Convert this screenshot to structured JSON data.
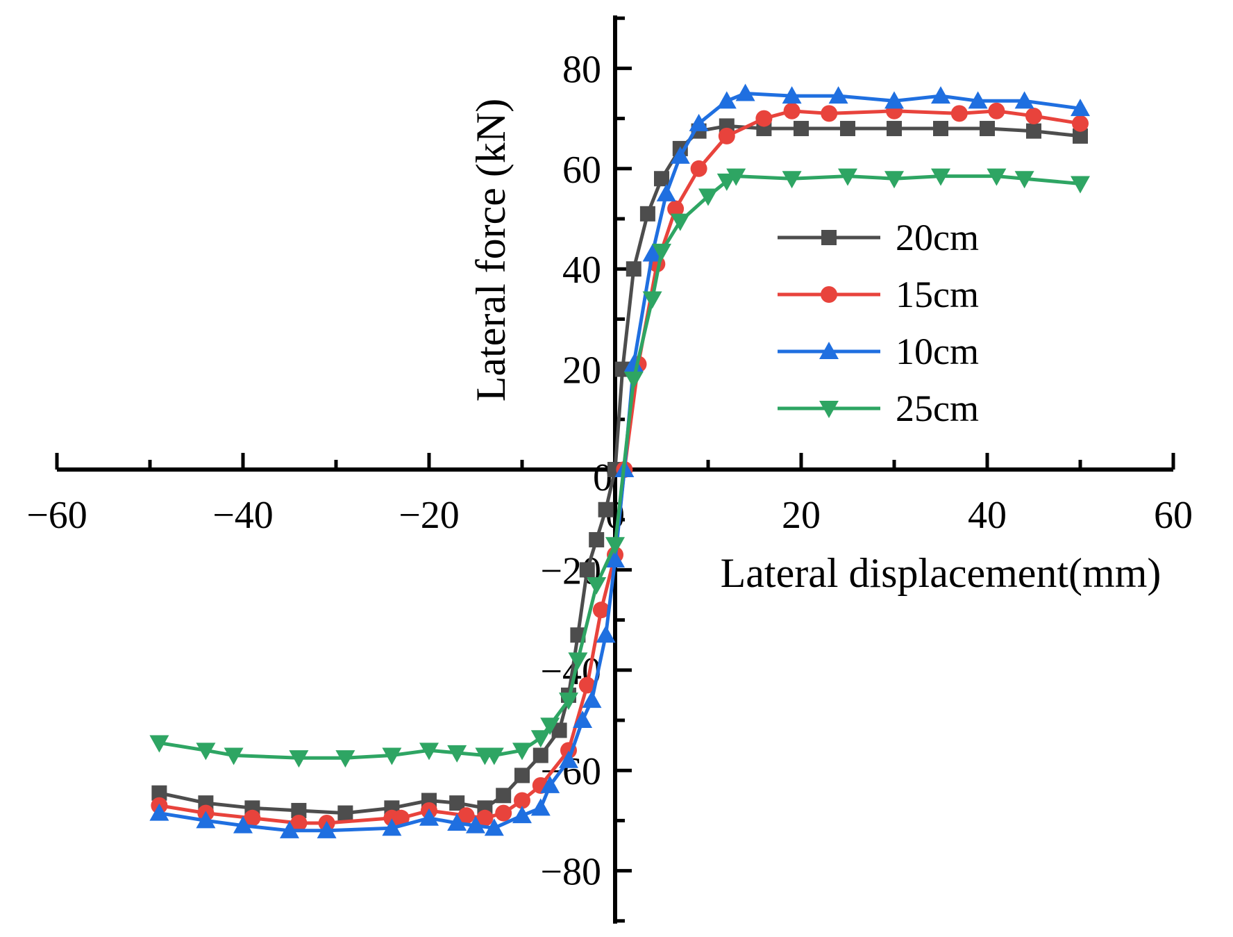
{
  "chart_data": {
    "type": "line",
    "title": "",
    "xlabel": "Lateral displacement(mm)",
    "ylabel": "Lateral force (kN)",
    "xlim": [
      -60,
      60
    ],
    "ylim": [
      -90,
      90
    ],
    "xticks": [
      -60,
      -40,
      -20,
      0,
      20,
      40,
      60
    ],
    "xtick_labels": [
      "−60",
      "−40",
      "−20",
      "0",
      "20",
      "40",
      "60"
    ],
    "yticks": [
      -80,
      -60,
      -40,
      -20,
      20,
      40,
      60,
      80
    ],
    "ytick_labels": [
      "−80",
      "−60",
      "−40",
      "−20",
      "20",
      "40",
      "60",
      "80"
    ],
    "legend_position": "right",
    "series": [
      {
        "name": "20cm",
        "color": "#4d4d4d",
        "marker": "square",
        "x": [
          -49,
          -44,
          -39,
          -34,
          -29,
          -24,
          -20,
          -17,
          -14,
          -12,
          -10,
          -8,
          -6,
          -5,
          -4,
          -3,
          -2,
          -1,
          0,
          0.8,
          2,
          3.5,
          5,
          7,
          9,
          12,
          16,
          20,
          25,
          30,
          35,
          40,
          45,
          50
        ],
        "y": [
          -64.5,
          -66.5,
          -67.5,
          -68,
          -68.5,
          -67.5,
          -66,
          -66.5,
          -67.5,
          -65,
          -61,
          -57,
          -52,
          -45,
          -33,
          -20,
          -14,
          -8,
          0,
          20,
          40,
          51,
          58,
          64,
          67.5,
          68.5,
          68,
          68,
          68,
          68,
          68,
          68,
          67.5,
          66.5
        ]
      },
      {
        "name": "15cm",
        "color": "#e8433c",
        "marker": "circle",
        "x": [
          -49,
          -44,
          -39,
          -34,
          -31,
          -24,
          -23,
          -20,
          -16,
          -14,
          -12,
          -10,
          -8,
          -5,
          -3,
          -1.5,
          0,
          1,
          2.5,
          4.5,
          6.5,
          9,
          12,
          16,
          19,
          23,
          30,
          37,
          41,
          45,
          50
        ],
        "y": [
          -67,
          -68.5,
          -69.5,
          -70.5,
          -70.5,
          -69.5,
          -69.5,
          -68,
          -69,
          -69.5,
          -68.5,
          -66,
          -63,
          -56,
          -43,
          -28,
          -17,
          0,
          21,
          41,
          52,
          60,
          66.5,
          70,
          71.5,
          71,
          71.5,
          71,
          71.5,
          70.5,
          69
        ]
      },
      {
        "name": "10cm",
        "color": "#1f6fe0",
        "marker": "triangle-up",
        "x": [
          -49,
          -44,
          -40,
          -35,
          -31,
          -24,
          -20,
          -17,
          -15,
          -13,
          -10,
          -8,
          -7,
          -5,
          -3.5,
          -2.5,
          -1,
          0,
          1,
          2,
          4,
          5.5,
          7,
          9,
          12,
          14,
          19,
          24,
          30,
          35,
          39,
          44,
          50
        ],
        "y": [
          -68.5,
          -70,
          -71,
          -72,
          -72,
          -71.5,
          -69.5,
          -70.5,
          -71,
          -71.5,
          -69,
          -67.5,
          -63,
          -58,
          -50,
          -46,
          -33,
          -18,
          0,
          21,
          43,
          55,
          62.5,
          69,
          73.5,
          75,
          74.5,
          74.5,
          73.5,
          74.5,
          73.5,
          73.5,
          72
        ]
      },
      {
        "name": "25cm",
        "color": "#2ea563",
        "marker": "triangle-down",
        "x": [
          -49,
          -44,
          -41,
          -34,
          -29,
          -24,
          -20,
          -17,
          -14,
          -13,
          -10,
          -8,
          -7,
          -5,
          -4,
          -2,
          0,
          2,
          4,
          5,
          7,
          10,
          12,
          13,
          19,
          25,
          30,
          35,
          41,
          44,
          50
        ],
        "y": [
          -54.5,
          -56,
          -57,
          -57.5,
          -57.5,
          -57,
          -56,
          -56.5,
          -57,
          -57,
          -56,
          -53.5,
          -51,
          -46,
          -38,
          -23,
          -15,
          18,
          34,
          43.5,
          49.5,
          54.5,
          57.5,
          58.5,
          58,
          58.5,
          58,
          58.5,
          58.5,
          58,
          57
        ]
      }
    ]
  }
}
